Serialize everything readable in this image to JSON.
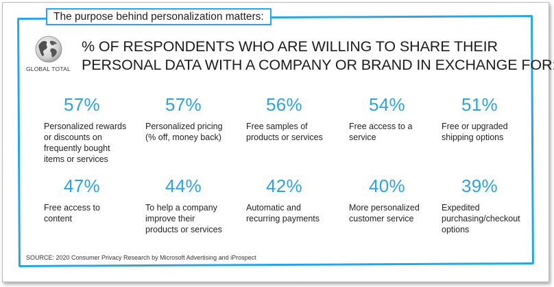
{
  "header": {
    "tab_label": "The purpose behind personalization matters:"
  },
  "badge": {
    "icon": "globe-icon",
    "label": "GLOBAL TOTAL"
  },
  "title": {
    "line1": "% OF RESPONDENTS WHO ARE WILLING TO SHARE THEIR",
    "line2": "PERSONAL DATA WITH A COMPANY OR BRAND IN EXCHANGE FOR:"
  },
  "stats": [
    {
      "value": "57%",
      "lines": [
        "Personalized rewards",
        "or discounts on",
        "frequently bought",
        "items or services"
      ]
    },
    {
      "value": "57%",
      "lines": [
        "Personalized pricing",
        "(% off, money back)"
      ]
    },
    {
      "value": "56%",
      "lines": [
        "Free samples of",
        "products or services"
      ]
    },
    {
      "value": "54%",
      "lines": [
        "Free access to a",
        "service"
      ]
    },
    {
      "value": "51%",
      "lines": [
        "Free or upgraded",
        "shipping options"
      ]
    },
    {
      "value": "47%",
      "lines": [
        "Free access to",
        "content"
      ]
    },
    {
      "value": "44%",
      "lines": [
        "To help a company",
        "improve their",
        "products or services"
      ]
    },
    {
      "value": "42%",
      "lines": [
        "Automatic and",
        "recurring payments"
      ]
    },
    {
      "value": "40%",
      "lines": [
        "More personalized",
        "customer service"
      ]
    },
    {
      "value": "39%",
      "lines": [
        "Expedited",
        "purchasing/checkout",
        "options"
      ]
    }
  ],
  "source": "SOURCE: 2020 Consumer Privacy Research by Microsoft Advertising and iProspect",
  "colors": {
    "accent": "#25a6e8",
    "percent": "#2ba3e0",
    "text": "#222222"
  }
}
